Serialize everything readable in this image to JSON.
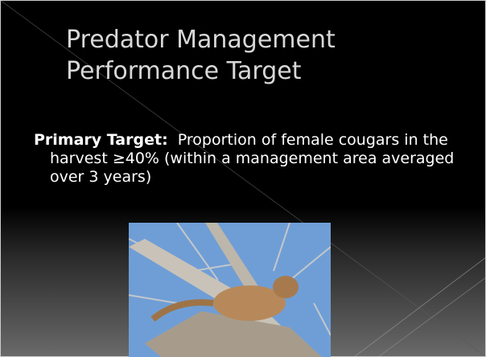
{
  "slide": {
    "title_lines": [
      "Predator Management",
      "Performance Target"
    ],
    "bullet": {
      "label": "Primary Target:",
      "text": "Proportion of female cougars in the harvest ≥40% (within a management area averaged over 3 years)"
    }
  }
}
